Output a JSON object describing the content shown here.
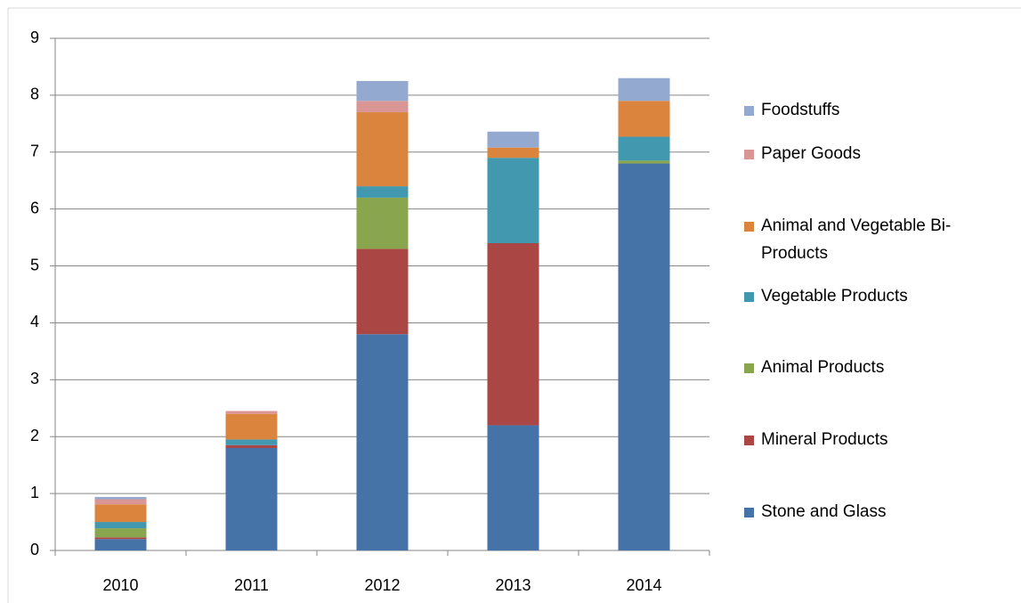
{
  "chart_data": {
    "type": "stacked_bar",
    "categories": [
      "2010",
      "2011",
      "2012",
      "2013",
      "2014"
    ],
    "series": [
      {
        "name": "Stone and Glass",
        "color": "#4572a7",
        "values": [
          0.2,
          1.8,
          3.8,
          2.2,
          6.8
        ]
      },
      {
        "name": "Mineral Products",
        "color": "#aa4643",
        "values": [
          0.03,
          0.05,
          1.5,
          3.2,
          0
        ]
      },
      {
        "name": "Animal Products",
        "color": "#89a54e",
        "values": [
          0.16,
          0,
          0.9,
          0,
          0.05
        ]
      },
      {
        "name": "Vegetable Products",
        "color": "#4198af",
        "values": [
          0.11,
          0.1,
          0.2,
          1.5,
          0.42
        ]
      },
      {
        "name": "Animal and Vegetable Bi-Products",
        "color": "#db843d",
        "values": [
          0.31,
          0.45,
          1.3,
          0.18,
          0.63
        ]
      },
      {
        "name": "Paper Goods",
        "color": "#d99694",
        "values": [
          0.09,
          0.05,
          0.2,
          0,
          0
        ]
      },
      {
        "name": "Foodstuffs",
        "color": "#93a9cf",
        "values": [
          0.04,
          0,
          0.35,
          0.28,
          0.4
        ]
      }
    ],
    "ylim": [
      0,
      9
    ],
    "yticks": [
      0,
      1,
      2,
      3,
      4,
      5,
      6,
      7,
      8,
      9
    ],
    "grid": true,
    "legend": "right"
  }
}
